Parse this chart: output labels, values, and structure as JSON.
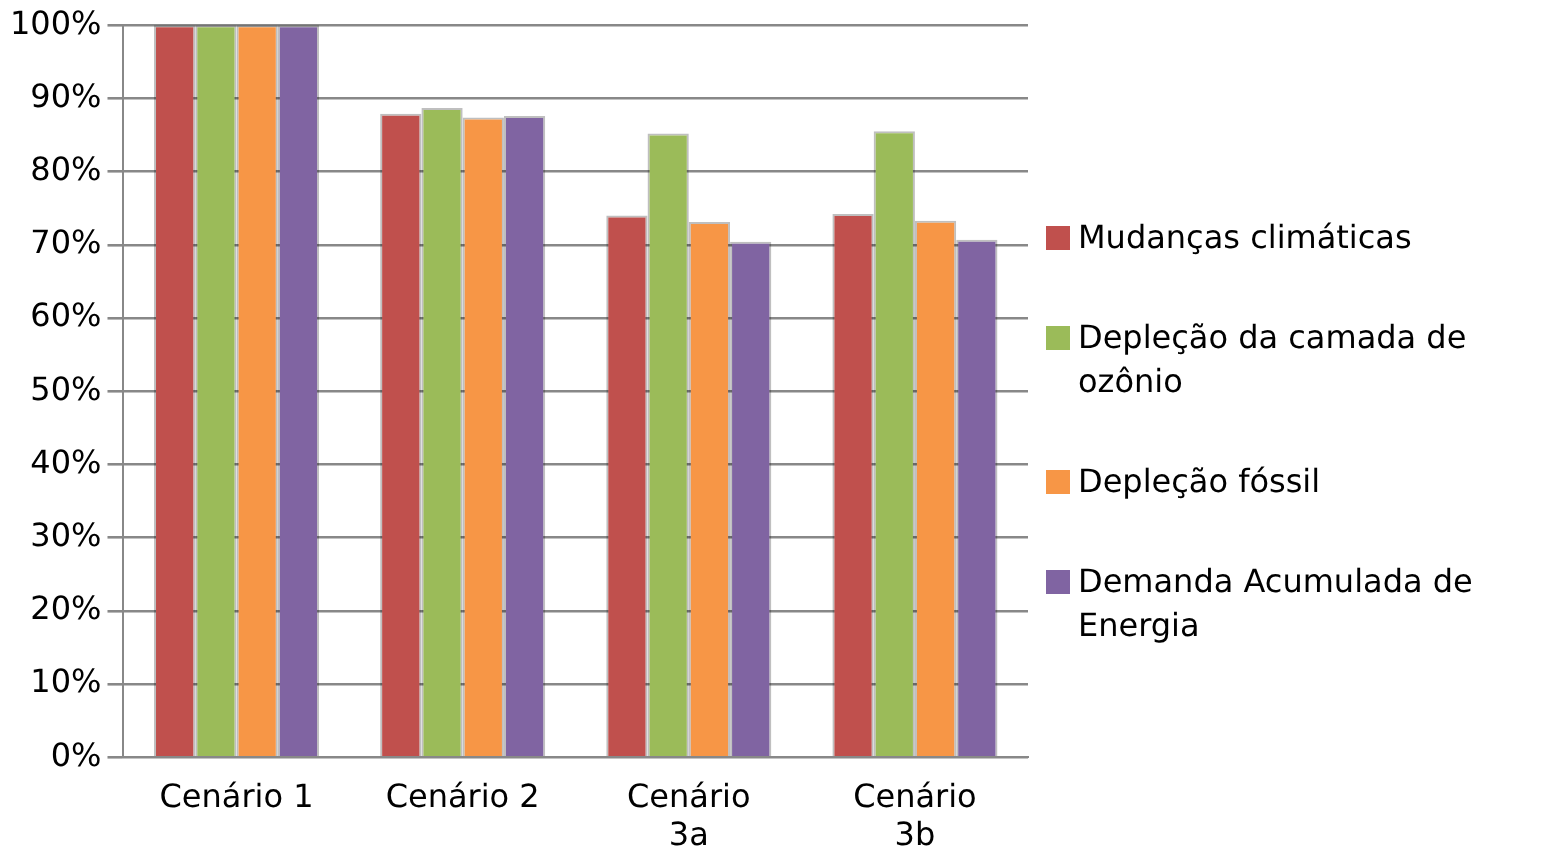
{
  "chart_data": {
    "type": "bar",
    "categories": [
      "Cenário 1",
      "Cenário 2",
      "Cenário 3a",
      "Cenário 3b"
    ],
    "series": [
      {
        "name": "Mudanças climáticas",
        "color": "#c0504d",
        "values": [
          100,
          87.9,
          74.0,
          74.2
        ]
      },
      {
        "name": "Depleção da camada de ozônio",
        "color": "#9bbb59",
        "values": [
          100,
          88.7,
          85.2,
          85.5
        ]
      },
      {
        "name": "Depleção fóssil",
        "color": "#f79646",
        "values": [
          100,
          87.4,
          73.1,
          73.3
        ]
      },
      {
        "name": "Demanda Acumulada de Energia",
        "color": "#8064a2",
        "values": [
          100,
          87.6,
          70.4,
          70.7
        ]
      }
    ],
    "ylim": [
      0,
      100
    ],
    "yticks": [
      {
        "value": 0,
        "label": "0%"
      },
      {
        "value": 10,
        "label": "10%"
      },
      {
        "value": 20,
        "label": "20%"
      },
      {
        "value": 30,
        "label": "30%"
      },
      {
        "value": 40,
        "label": "40%"
      },
      {
        "value": 50,
        "label": "50%"
      },
      {
        "value": 60,
        "label": "60%"
      },
      {
        "value": 70,
        "label": "70%"
      },
      {
        "value": 80,
        "label": "80%"
      },
      {
        "value": 90,
        "label": "90%"
      },
      {
        "value": 100,
        "label": "100%"
      }
    ],
    "grid": "y",
    "legend": "right"
  }
}
